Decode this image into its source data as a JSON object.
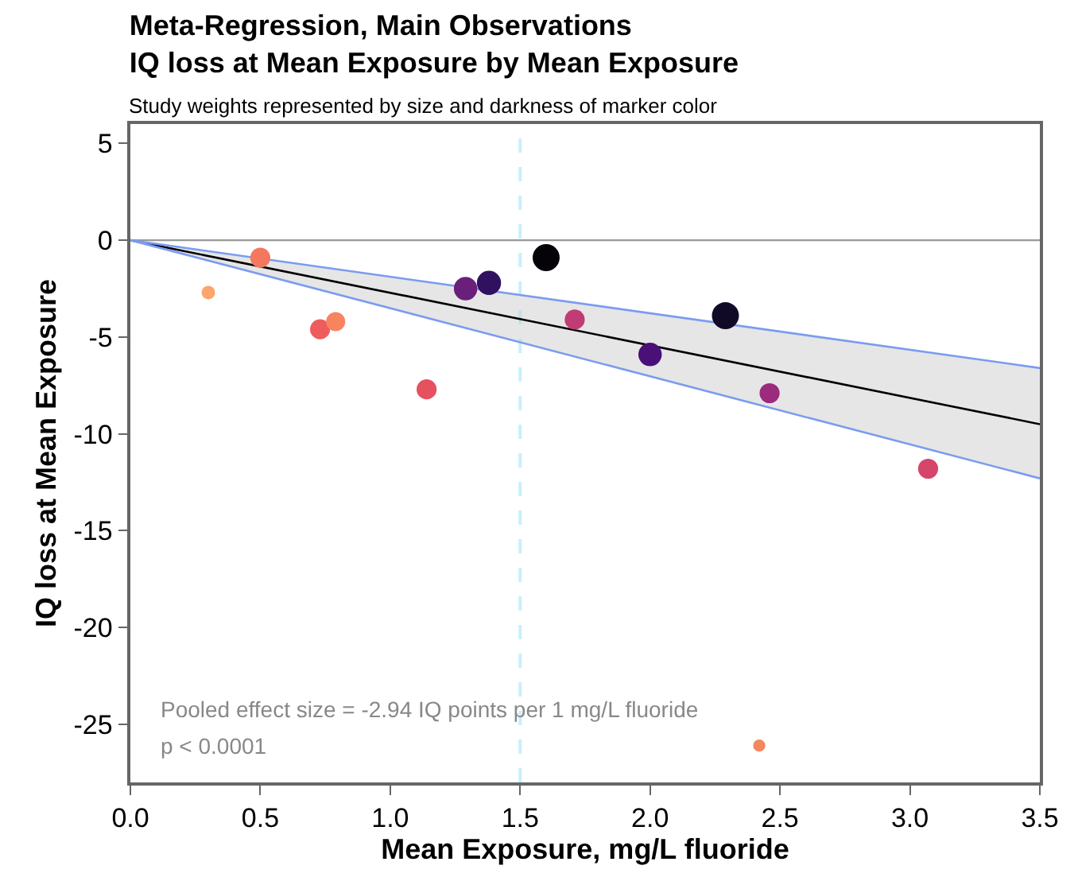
{
  "chart_data": {
    "type": "bubble",
    "title": "Meta-Regression, Main Observations\nIQ loss at Mean Exposure by Mean Exposure",
    "subtitle": "Study weights represented by size and darkness of marker color",
    "xlabel": "Mean Exposure, mg/L fluoride",
    "ylabel": "IQ loss at Mean Exposure",
    "annotations": [
      "Pooled effect size = -2.94 IQ points per 1 mg/L fluoride",
      "p < 0.0001"
    ],
    "series": [
      {
        "marker": "circle",
        "x": [
          0.5,
          0.3,
          0.73,
          0.79,
          1.14,
          1.29,
          1.38,
          1.6,
          1.71,
          2.0,
          2.29,
          2.46,
          3.07,
          2.42
        ],
        "values": [
          -0.9,
          -2.7,
          -4.6,
          -4.2,
          -7.7,
          -2.5,
          -2.2,
          -0.9,
          -4.1,
          -5.9,
          -3.9,
          -7.9,
          -11.8,
          -26.1
        ],
        "sizes": [
          0.55,
          0.25,
          0.55,
          0.5,
          0.55,
          0.75,
          0.8,
          1.0,
          0.55,
          0.75,
          1.0,
          0.55,
          0.55,
          0.2
        ],
        "colors": [
          "#f4775e",
          "#fca56c",
          "#ee5d5d",
          "#f8845f",
          "#e5515f",
          "#6a1f7a",
          "#2f1160",
          "#050308",
          "#c13b75",
          "#4b1077",
          "#110a27",
          "#9b2b7c",
          "#d6456a",
          "#f4875e"
        ]
      },
      {
        "type": "line",
        "color": "#000000",
        "x": [
          0,
          3.5
        ],
        "values": [
          0,
          -9.5
        ],
        "lower": [
          0,
          -12.3
        ],
        "upper": [
          0,
          -6.6
        ]
      },
      {
        "type": "line",
        "color": "#7a9cf0",
        "x": [
          0,
          3.5
        ],
        "values": [
          0,
          -6.6
        ]
      },
      {
        "type": "line",
        "color": "#7a9cf0",
        "x": [
          0,
          3.5
        ],
        "values": [
          0,
          -12.3
        ]
      }
    ],
    "xlim": [
      0,
      3.5
    ],
    "xticks": [
      {
        "value": 0,
        "label": "0.0"
      },
      {
        "value": 0.5,
        "label": "0.5"
      },
      {
        "value": 1,
        "label": "1.0"
      },
      {
        "value": 1.5,
        "label": "1.5"
      },
      {
        "value": 2,
        "label": "2.0"
      },
      {
        "value": 2.5,
        "label": "2.5"
      },
      {
        "value": 3,
        "label": "3.0"
      },
      {
        "value": 3.5,
        "label": "3.5"
      }
    ],
    "ylim": [
      -28,
      6
    ],
    "yticks": [
      5,
      0,
      -5,
      -10,
      -15,
      -20,
      -25
    ],
    "ref_lines": [
      {
        "axis": "y",
        "value": 0,
        "color": "#999999",
        "line_style": "solid"
      },
      {
        "axis": "x",
        "value": 1.5,
        "color": "#c8f0fa",
        "line_style": "dashed"
      }
    ],
    "grid": false
  }
}
